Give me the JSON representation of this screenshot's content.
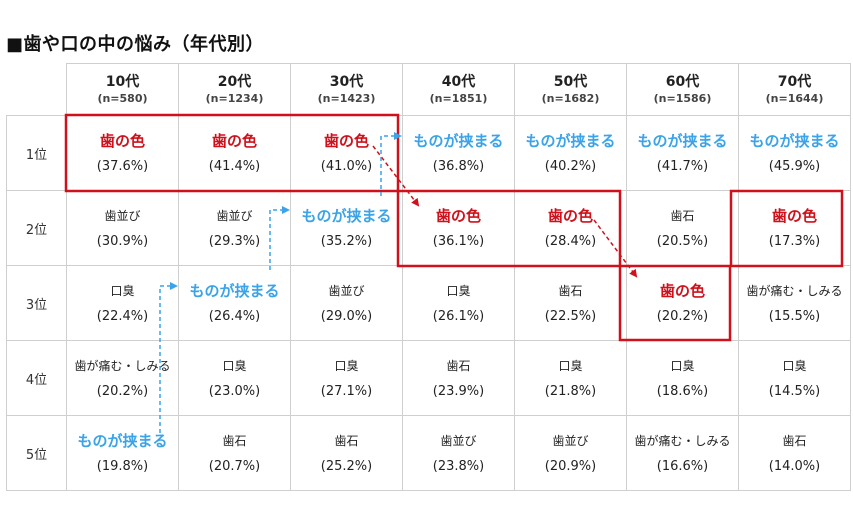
{
  "title": "■歯や口の中の悩み（年代別）",
  "columns": [
    {
      "age": "10代",
      "n": "(n=580)"
    },
    {
      "age": "20代",
      "n": "(n=1234)"
    },
    {
      "age": "30代",
      "n": "(n=1423)"
    },
    {
      "age": "40代",
      "n": "(n=1851)"
    },
    {
      "age": "50代",
      "n": "(n=1682)"
    },
    {
      "age": "60代",
      "n": "(n=1586)"
    },
    {
      "age": "70代",
      "n": "(n=1644)"
    }
  ],
  "rows": [
    {
      "rank": "1位",
      "cells": [
        {
          "item": "歯の色",
          "pct": "(37.6%)",
          "style": "red"
        },
        {
          "item": "歯の色",
          "pct": "(41.4%)",
          "style": "red"
        },
        {
          "item": "歯の色",
          "pct": "(41.0%)",
          "style": "red"
        },
        {
          "item": "ものが挟まる",
          "pct": "(36.8%)",
          "style": "blue"
        },
        {
          "item": "ものが挟まる",
          "pct": "(40.2%)",
          "style": "blue"
        },
        {
          "item": "ものが挟まる",
          "pct": "(41.7%)",
          "style": "blue"
        },
        {
          "item": "ものが挟まる",
          "pct": "(45.9%)",
          "style": "blue"
        }
      ]
    },
    {
      "rank": "2位",
      "cells": [
        {
          "item": "歯並び",
          "pct": "(30.9%)",
          "style": "plain"
        },
        {
          "item": "歯並び",
          "pct": "(29.3%)",
          "style": "plain"
        },
        {
          "item": "ものが挟まる",
          "pct": "(35.2%)",
          "style": "blue"
        },
        {
          "item": "歯の色",
          "pct": "(36.1%)",
          "style": "red"
        },
        {
          "item": "歯の色",
          "pct": "(28.4%)",
          "style": "red"
        },
        {
          "item": "歯石",
          "pct": "(20.5%)",
          "style": "plain"
        },
        {
          "item": "歯の色",
          "pct": "(17.3%)",
          "style": "red"
        }
      ]
    },
    {
      "rank": "3位",
      "cells": [
        {
          "item": "口臭",
          "pct": "(22.4%)",
          "style": "plain"
        },
        {
          "item": "ものが挟まる",
          "pct": "(26.4%)",
          "style": "blue"
        },
        {
          "item": "歯並び",
          "pct": "(29.0%)",
          "style": "plain"
        },
        {
          "item": "口臭",
          "pct": "(26.1%)",
          "style": "plain"
        },
        {
          "item": "歯石",
          "pct": "(22.5%)",
          "style": "plain"
        },
        {
          "item": "歯の色",
          "pct": "(20.2%)",
          "style": "red"
        },
        {
          "item": "歯が痛む・しみる",
          "pct": "(15.5%)",
          "style": "plain"
        }
      ]
    },
    {
      "rank": "4位",
      "cells": [
        {
          "item": "歯が痛む・しみる",
          "pct": "(20.2%)",
          "style": "plain"
        },
        {
          "item": "口臭",
          "pct": "(23.0%)",
          "style": "plain"
        },
        {
          "item": "口臭",
          "pct": "(27.1%)",
          "style": "plain"
        },
        {
          "item": "歯石",
          "pct": "(23.9%)",
          "style": "plain"
        },
        {
          "item": "口臭",
          "pct": "(21.8%)",
          "style": "plain"
        },
        {
          "item": "口臭",
          "pct": "(18.6%)",
          "style": "plain"
        },
        {
          "item": "口臭",
          "pct": "(14.5%)",
          "style": "plain"
        }
      ]
    },
    {
      "rank": "5位",
      "cells": [
        {
          "item": "ものが挟まる",
          "pct": "(19.8%)",
          "style": "blue"
        },
        {
          "item": "歯石",
          "pct": "(20.7%)",
          "style": "plain"
        },
        {
          "item": "歯石",
          "pct": "(25.2%)",
          "style": "plain"
        },
        {
          "item": "歯並び",
          "pct": "(23.8%)",
          "style": "plain"
        },
        {
          "item": "歯並び",
          "pct": "(20.9%)",
          "style": "plain"
        },
        {
          "item": "歯が痛む・しみる",
          "pct": "(16.6%)",
          "style": "plain"
        },
        {
          "item": "歯石",
          "pct": "(14.0%)",
          "style": "plain"
        }
      ]
    }
  ],
  "colors": {
    "red": "#d0101a",
    "blue": "#3aa3ea",
    "grid": "#cfcfcf"
  }
}
